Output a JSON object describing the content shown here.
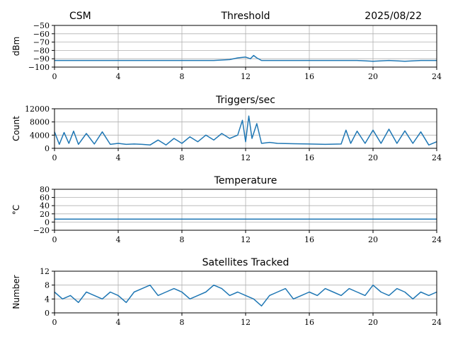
{
  "header": {
    "left": "CSM",
    "date": "2025/08/22"
  },
  "colors": {
    "series": "#1f77b4",
    "grid": "#b0b0b0"
  },
  "chart_data": [
    {
      "type": "line",
      "title": "Threshold",
      "ylabel": "dBm",
      "xlim": [
        0,
        24
      ],
      "ylim": [
        -100,
        -50
      ],
      "xticks": [
        0,
        4,
        8,
        12,
        16,
        20,
        24
      ],
      "yticks": [
        -50,
        -60,
        -70,
        -80,
        -90,
        -100
      ],
      "grid": true,
      "series": [
        {
          "x": [
            0,
            1,
            2,
            3,
            4,
            5,
            6,
            7,
            8,
            9,
            10,
            11,
            11.5,
            12,
            12.3,
            12.5,
            12.7,
            13,
            14,
            15,
            16,
            17,
            18,
            19,
            20,
            21,
            22,
            23,
            24
          ],
          "values": [
            -92,
            -92,
            -92,
            -92,
            -92,
            -92,
            -92,
            -92,
            -92,
            -92,
            -92,
            -91,
            -89,
            -88,
            -90,
            -86,
            -89,
            -92,
            -92,
            -92,
            -92,
            -92,
            -92,
            -92,
            -93,
            -92,
            -93,
            -92,
            -92
          ]
        }
      ]
    },
    {
      "type": "line",
      "title": "Triggers/sec",
      "ylabel": "Count",
      "xlim": [
        0,
        24
      ],
      "ylim": [
        0,
        12000
      ],
      "xticks": [
        0,
        4,
        8,
        12,
        16,
        20,
        24
      ],
      "yticks": [
        0,
        4000,
        8000,
        12000
      ],
      "grid": true,
      "series": [
        {
          "x": [
            0,
            0.3,
            0.6,
            0.9,
            1.2,
            1.5,
            2,
            2.5,
            3,
            3.5,
            4,
            4.5,
            5,
            5.5,
            6,
            6.5,
            7,
            7.5,
            8,
            8.5,
            9,
            9.5,
            10,
            10.5,
            11,
            11.5,
            11.8,
            12,
            12.2,
            12.4,
            12.7,
            13,
            13.5,
            14,
            15,
            16,
            17,
            18,
            18.3,
            18.6,
            19,
            19.5,
            20,
            20.5,
            21,
            21.5,
            22,
            22.5,
            23,
            23.5,
            24
          ],
          "values": [
            5000,
            1200,
            4800,
            1500,
            5200,
            1200,
            4500,
            1300,
            5000,
            1200,
            1500,
            1200,
            1300,
            1200,
            1000,
            2500,
            1000,
            3000,
            1500,
            3500,
            2000,
            4000,
            2500,
            4500,
            3000,
            4000,
            8500,
            2000,
            9800,
            3000,
            7500,
            1500,
            1800,
            1500,
            1400,
            1300,
            1200,
            1300,
            5500,
            1500,
            5200,
            1500,
            5500,
            1500,
            5800,
            1500,
            5300,
            1500,
            5000,
            1000,
            2000
          ]
        }
      ]
    },
    {
      "type": "line",
      "title": "Temperature",
      "ylabel": "°C",
      "xlim": [
        0,
        24
      ],
      "ylim": [
        -20,
        80
      ],
      "xticks": [
        0,
        4,
        8,
        12,
        16,
        20,
        24
      ],
      "yticks": [
        -20,
        0,
        20,
        40,
        60,
        80
      ],
      "grid": true,
      "series": [
        {
          "x": [
            0,
            24
          ],
          "values": [
            7,
            7
          ]
        }
      ]
    },
    {
      "type": "line",
      "title": "Satellites Tracked",
      "ylabel": "Number",
      "xlim": [
        0,
        24
      ],
      "ylim": [
        0,
        12
      ],
      "xticks": [
        0,
        4,
        8,
        12,
        16,
        20,
        24
      ],
      "yticks": [
        0,
        4,
        8,
        12
      ],
      "grid": true,
      "series": [
        {
          "x": [
            0,
            0.5,
            1,
            1.5,
            2,
            2.5,
            3,
            3.5,
            4,
            4.5,
            5,
            5.5,
            6,
            6.5,
            7,
            7.5,
            8,
            8.5,
            9,
            9.5,
            10,
            10.5,
            11,
            11.5,
            12,
            12.5,
            13,
            13.5,
            14,
            14.5,
            15,
            15.5,
            16,
            16.5,
            17,
            17.5,
            18,
            18.5,
            19,
            19.5,
            20,
            20.5,
            21,
            21.5,
            22,
            22.5,
            23,
            23.5,
            24
          ],
          "values": [
            6,
            4,
            5,
            3,
            6,
            5,
            4,
            6,
            5,
            3,
            6,
            7,
            8,
            5,
            6,
            7,
            6,
            4,
            5,
            6,
            8,
            7,
            5,
            6,
            5,
            4,
            2,
            5,
            6,
            7,
            4,
            5,
            6,
            5,
            7,
            6,
            5,
            7,
            6,
            5,
            8,
            6,
            5,
            7,
            6,
            4,
            6,
            5,
            6
          ]
        }
      ]
    }
  ]
}
